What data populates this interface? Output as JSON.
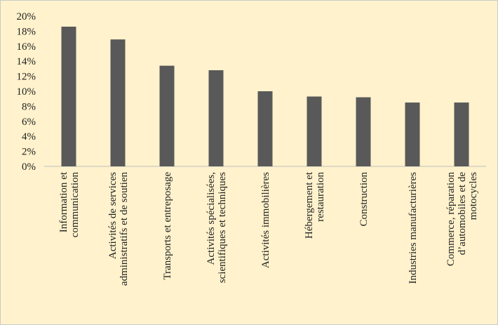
{
  "chart_data": {
    "type": "bar",
    "title": "",
    "xlabel": "",
    "ylabel": "",
    "ylim": [
      0,
      20
    ],
    "y_tick_step": 2,
    "y_tick_format": "percent",
    "grid": false,
    "legend": "none",
    "categories": [
      [
        "Information et",
        "communication"
      ],
      [
        "Activités de services",
        "administratifs et de soutien"
      ],
      [
        "Transports et entreposage"
      ],
      [
        "Activités spécialisées,",
        "scientifiques et techniques"
      ],
      [
        "Activités immobilières"
      ],
      [
        "Hébergement et",
        "restauration"
      ],
      [
        "Construction"
      ],
      [
        "Industries manufacturières"
      ],
      [
        "Commerce, réparation",
        "d’automobiles et de",
        "motocycles"
      ]
    ],
    "values": [
      18.6,
      16.9,
      13.4,
      12.8,
      10.0,
      9.3,
      9.2,
      8.5,
      8.5
    ],
    "colors": {
      "bar": "#595959",
      "background": "#fff2cc",
      "axis": "#bfbfbf",
      "text": "#222222"
    }
  }
}
